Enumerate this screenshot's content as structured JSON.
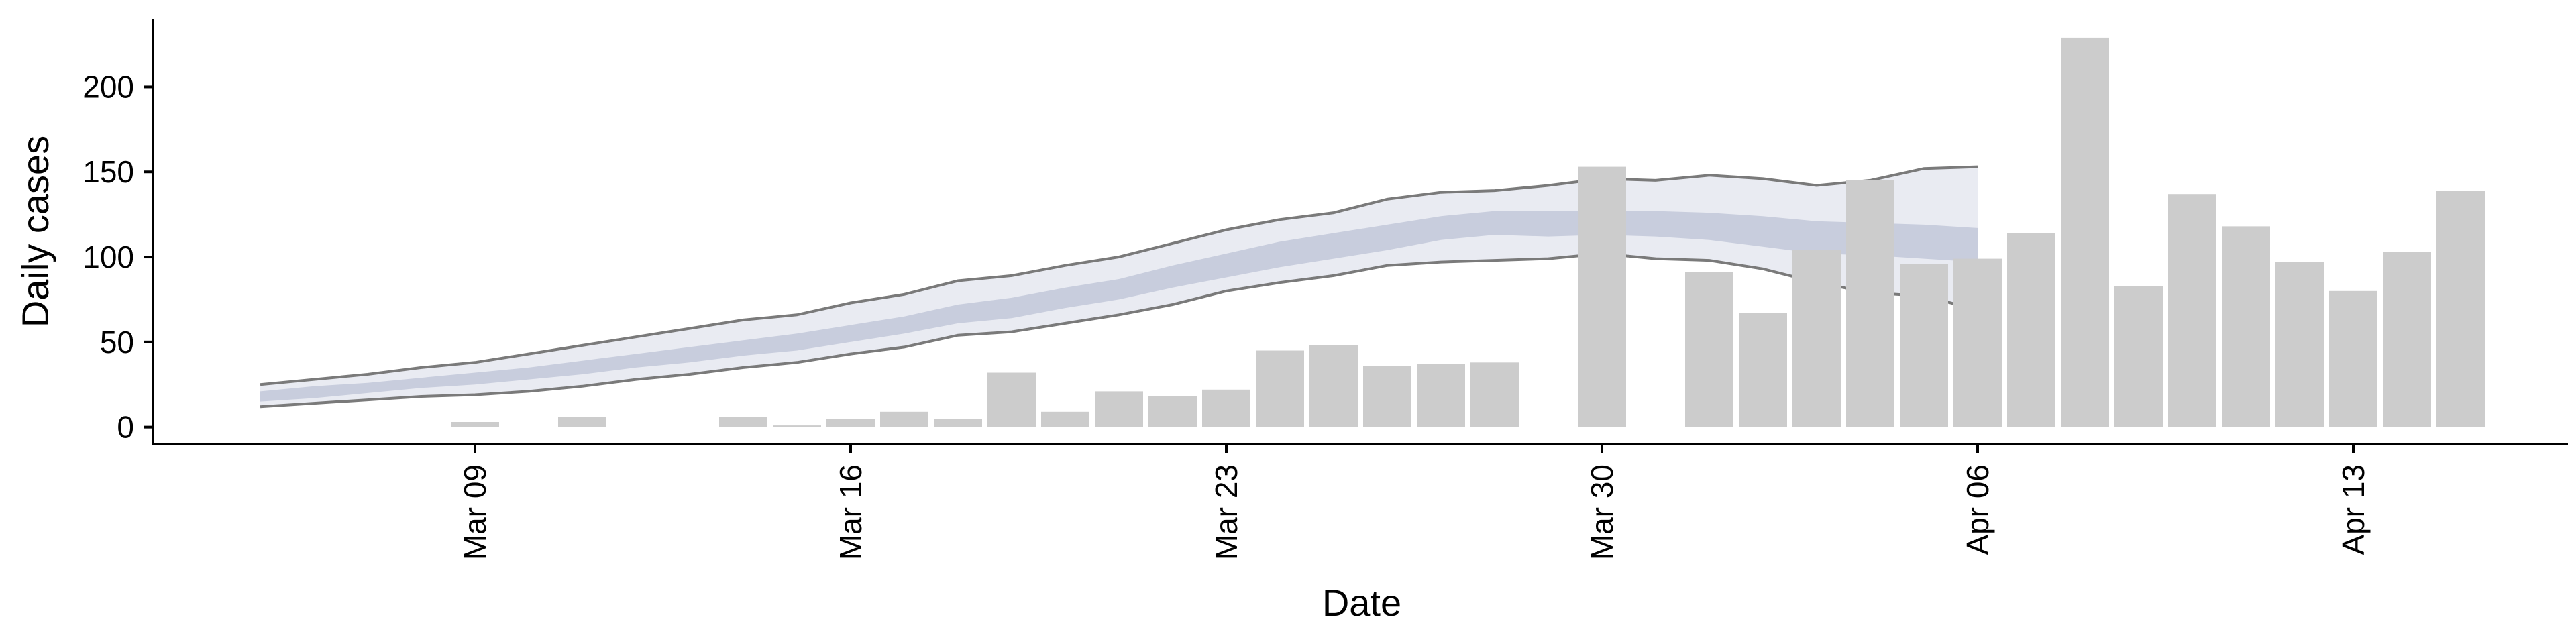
{
  "chart_data": {
    "type": "bar",
    "xlabel": "Date",
    "ylabel": "Daily cases",
    "x_ticks": [
      {
        "date": "2020-03-09",
        "label": "Mar 09"
      },
      {
        "date": "2020-03-16",
        "label": "Mar 16"
      },
      {
        "date": "2020-03-23",
        "label": "Mar 23"
      },
      {
        "date": "2020-03-30",
        "label": "Mar 30"
      },
      {
        "date": "2020-04-06",
        "label": "Apr 06"
      },
      {
        "date": "2020-04-13",
        "label": "Apr 13"
      }
    ],
    "y_ticks": [
      0,
      50,
      100,
      150,
      200
    ],
    "xlim": [
      "2020-03-03",
      "2020-04-17"
    ],
    "ylim": [
      -10,
      240
    ],
    "grid": false,
    "bars": {
      "x": [
        "2020-03-09",
        "2020-03-11",
        "2020-03-14",
        "2020-03-15",
        "2020-03-16",
        "2020-03-17",
        "2020-03-18",
        "2020-03-19",
        "2020-03-20",
        "2020-03-21",
        "2020-03-22",
        "2020-03-23",
        "2020-03-24",
        "2020-03-25",
        "2020-03-26",
        "2020-03-27",
        "2020-03-28",
        "2020-03-30",
        "2020-04-01",
        "2020-04-02",
        "2020-04-03",
        "2020-04-04",
        "2020-04-05",
        "2020-04-06",
        "2020-04-07",
        "2020-04-08",
        "2020-04-09",
        "2020-04-10",
        "2020-04-11",
        "2020-04-12",
        "2020-04-13",
        "2020-04-14",
        "2020-04-15"
      ],
      "values": [
        3,
        6,
        6,
        1,
        5,
        9,
        5,
        32,
        9,
        21,
        18,
        22,
        45,
        48,
        36,
        37,
        38,
        153,
        91,
        67,
        104,
        145,
        96,
        99,
        114,
        229,
        83,
        137,
        118,
        97,
        80,
        103,
        139
      ],
      "color": "#cccccc"
    },
    "band": {
      "x": [
        "2020-03-05",
        "2020-03-06",
        "2020-03-07",
        "2020-03-08",
        "2020-03-09",
        "2020-03-10",
        "2020-03-11",
        "2020-03-12",
        "2020-03-13",
        "2020-03-14",
        "2020-03-15",
        "2020-03-16",
        "2020-03-17",
        "2020-03-18",
        "2020-03-19",
        "2020-03-20",
        "2020-03-21",
        "2020-03-22",
        "2020-03-23",
        "2020-03-24",
        "2020-03-25",
        "2020-03-26",
        "2020-03-27",
        "2020-03-28",
        "2020-03-29",
        "2020-03-30",
        "2020-03-31",
        "2020-04-01",
        "2020-04-02",
        "2020-04-03",
        "2020-04-04",
        "2020-04-05",
        "2020-04-06"
      ],
      "lower_outer": [
        12,
        14,
        16,
        18,
        19,
        21,
        24,
        28,
        31,
        35,
        38,
        43,
        47,
        54,
        56,
        61,
        66,
        72,
        80,
        85,
        89,
        95,
        97,
        98,
        99,
        102,
        99,
        98,
        93,
        85,
        79,
        77,
        69
      ],
      "upper_outer": [
        25,
        28,
        31,
        35,
        38,
        43,
        48,
        53,
        58,
        63,
        66,
        73,
        78,
        86,
        89,
        95,
        100,
        108,
        116,
        122,
        126,
        134,
        138,
        139,
        142,
        146,
        145,
        148,
        146,
        142,
        145,
        152,
        153
      ],
      "lower_inner": [
        15,
        17,
        20,
        23,
        25,
        28,
        31,
        35,
        38,
        42,
        45,
        50,
        55,
        61,
        64,
        70,
        75,
        82,
        88,
        94,
        99,
        104,
        110,
        113,
        112,
        113,
        112,
        110,
        106,
        102,
        101,
        99,
        97
      ],
      "upper_inner": [
        21,
        24,
        26,
        29,
        32,
        35,
        39,
        43,
        47,
        51,
        55,
        60,
        65,
        72,
        76,
        82,
        87,
        95,
        102,
        109,
        114,
        119,
        124,
        127,
        127,
        127,
        127,
        126,
        124,
        121,
        120,
        119,
        117
      ],
      "outer_color": "#e9ebf2",
      "inner_color": "#c8cddd",
      "line_color": "#7a7a7a"
    }
  }
}
